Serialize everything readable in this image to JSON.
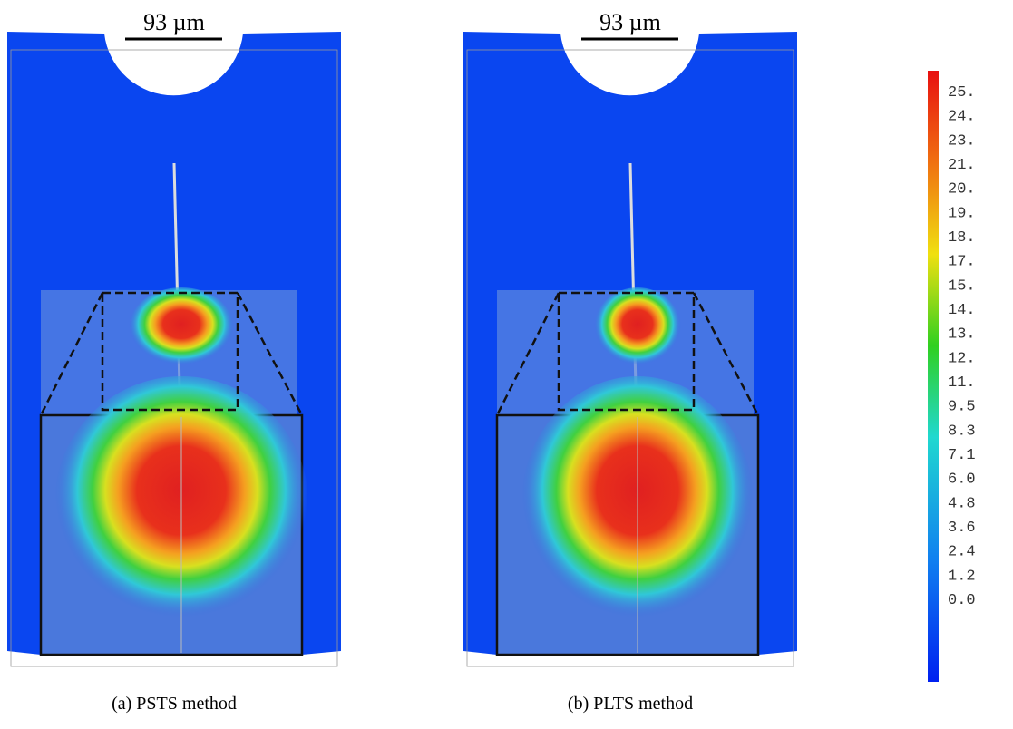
{
  "panels": [
    {
      "scale_bar": "93 µm",
      "caption": "(a) PSTS method"
    },
    {
      "scale_bar": "93 µm",
      "caption": "(b) PLTS method"
    }
  ],
  "colorbar": {
    "labels": [
      "25.",
      "24.",
      "23.",
      "21.",
      "20.",
      "19.",
      "18.",
      "17.",
      "15.",
      "14.",
      "13.",
      "12.",
      "11.",
      "9.5",
      "8.3",
      "7.1",
      "6.0",
      "4.8",
      "3.6",
      "2.4",
      "1.2",
      "0.0"
    ]
  }
}
